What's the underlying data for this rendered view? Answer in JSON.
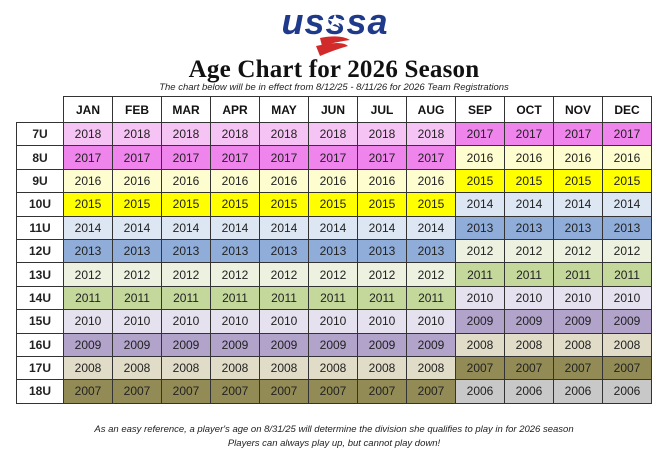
{
  "logo_text": "USSSA",
  "title": "Age Chart for 2026 Season",
  "subtitle": "The chart below will be in effect from 8/12/25 - 8/11/26 for 2026 Team Registrations",
  "months": [
    "JAN",
    "FEB",
    "MAR",
    "APR",
    "MAY",
    "JUN",
    "JUL",
    "AUG",
    "SEP",
    "OCT",
    "NOV",
    "DEC"
  ],
  "rows": [
    {
      "label": "7U",
      "years": [
        "2018",
        "2018",
        "2018",
        "2018",
        "2018",
        "2018",
        "2018",
        "2018",
        "2017",
        "2017",
        "2017",
        "2017"
      ]
    },
    {
      "label": "8U",
      "years": [
        "2017",
        "2017",
        "2017",
        "2017",
        "2017",
        "2017",
        "2017",
        "2017",
        "2016",
        "2016",
        "2016",
        "2016"
      ]
    },
    {
      "label": "9U",
      "years": [
        "2016",
        "2016",
        "2016",
        "2016",
        "2016",
        "2016",
        "2016",
        "2016",
        "2015",
        "2015",
        "2015",
        "2015"
      ]
    },
    {
      "label": "10U",
      "years": [
        "2015",
        "2015",
        "2015",
        "2015",
        "2015",
        "2015",
        "2015",
        "2015",
        "2014",
        "2014",
        "2014",
        "2014"
      ]
    },
    {
      "label": "11U",
      "years": [
        "2014",
        "2014",
        "2014",
        "2014",
        "2014",
        "2014",
        "2014",
        "2014",
        "2013",
        "2013",
        "2013",
        "2013"
      ]
    },
    {
      "label": "12U",
      "years": [
        "2013",
        "2013",
        "2013",
        "2013",
        "2013",
        "2013",
        "2013",
        "2013",
        "2012",
        "2012",
        "2012",
        "2012"
      ]
    },
    {
      "label": "13U",
      "years": [
        "2012",
        "2012",
        "2012",
        "2012",
        "2012",
        "2012",
        "2012",
        "2012",
        "2011",
        "2011",
        "2011",
        "2011"
      ]
    },
    {
      "label": "14U",
      "years": [
        "2011",
        "2011",
        "2011",
        "2011",
        "2011",
        "2011",
        "2011",
        "2011",
        "2010",
        "2010",
        "2010",
        "2010"
      ]
    },
    {
      "label": "15U",
      "years": [
        "2010",
        "2010",
        "2010",
        "2010",
        "2010",
        "2010",
        "2010",
        "2010",
        "2009",
        "2009",
        "2009",
        "2009"
      ]
    },
    {
      "label": "16U",
      "years": [
        "2009",
        "2009",
        "2009",
        "2009",
        "2009",
        "2009",
        "2009",
        "2009",
        "2008",
        "2008",
        "2008",
        "2008"
      ]
    },
    {
      "label": "17U",
      "years": [
        "2008",
        "2008",
        "2008",
        "2008",
        "2008",
        "2008",
        "2008",
        "2008",
        "2007",
        "2007",
        "2007",
        "2007"
      ]
    },
    {
      "label": "18U",
      "years": [
        "2007",
        "2007",
        "2007",
        "2007",
        "2007",
        "2007",
        "2007",
        "2007",
        "2006",
        "2006",
        "2006",
        "2006"
      ]
    }
  ],
  "year_colors": {
    "2018": "#f6c4f4",
    "2017": "#ee84ec",
    "2016": "#fdfdd0",
    "2015": "#ffff00",
    "2014": "#dde6f3",
    "2013": "#8fadd8",
    "2012": "#ecf1e0",
    "2011": "#c4d89c",
    "2010": "#e6e1ee",
    "2009": "#b2a3cb",
    "2008": "#e0dcc8",
    "2007": "#938b56",
    "2006": "#c8c8c8"
  },
  "footer": {
    "line1": "As an easy reference, a player's age on 8/31/25 will determine the division she qualifies to play in for 2026 season",
    "line2": "Players can always play up, but cannot play down!"
  }
}
